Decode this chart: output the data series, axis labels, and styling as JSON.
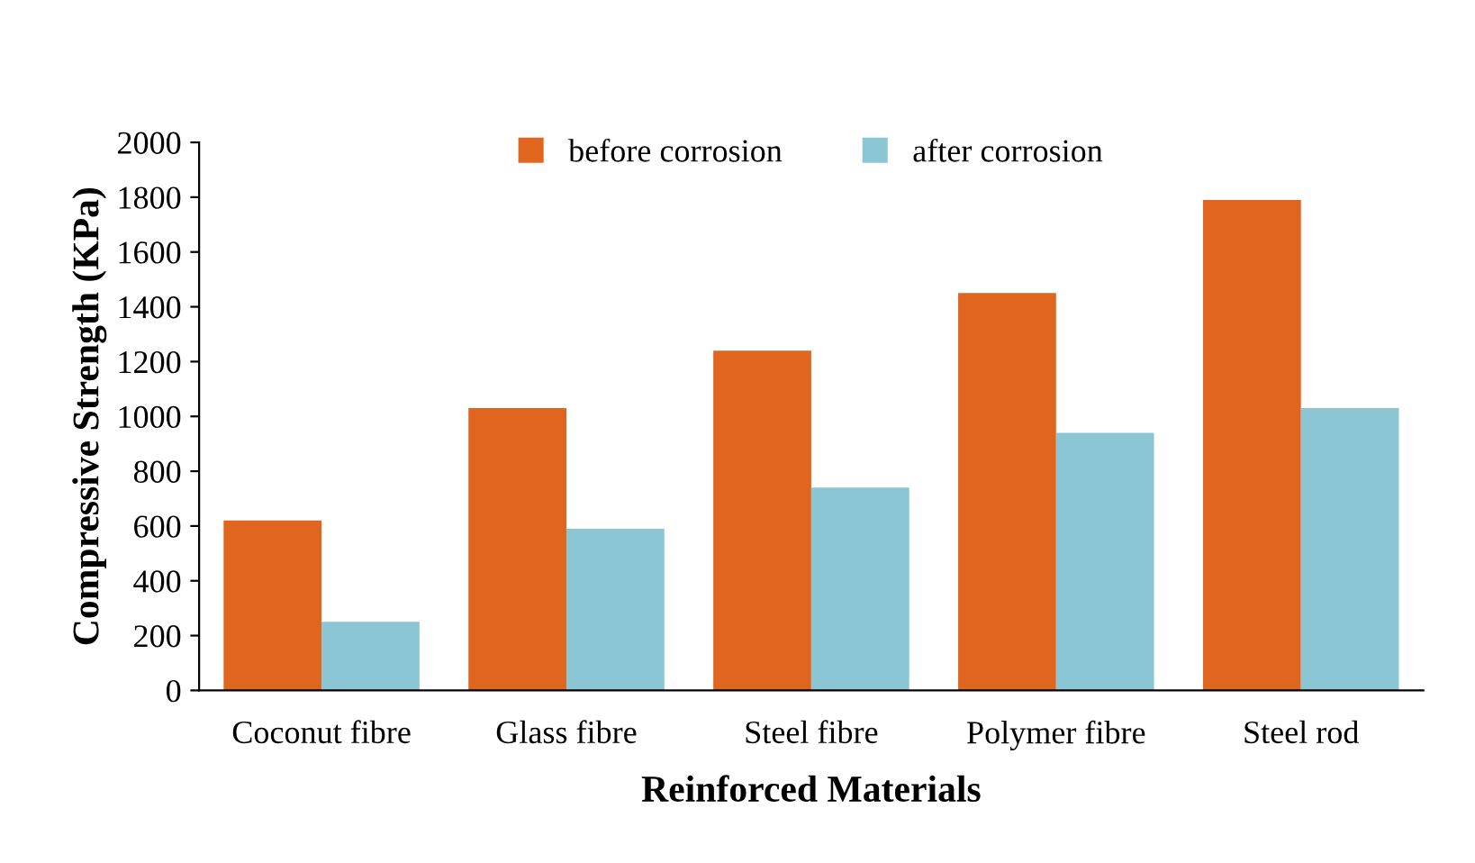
{
  "chart_data": {
    "type": "bar",
    "xlabel": "Reinforced Materials",
    "ylabel": "Compressive Strength (KPa)",
    "categories": [
      "Coconut fibre",
      "Glass fibre",
      "Steel fibre",
      "Polymer fibre",
      "Steel rod"
    ],
    "series": [
      {
        "name": "before corrosion",
        "color": "#e06620",
        "values": [
          620,
          1030,
          1240,
          1450,
          1790
        ]
      },
      {
        "name": "after corrosion",
        "color": "#8ac6d4",
        "values": [
          250,
          590,
          740,
          940,
          1030
        ]
      }
    ],
    "ylim": [
      0,
      2000
    ],
    "yticks": [
      0,
      200,
      400,
      600,
      800,
      1000,
      1200,
      1400,
      1600,
      1800,
      2000
    ],
    "grid": false,
    "legend": "top"
  }
}
